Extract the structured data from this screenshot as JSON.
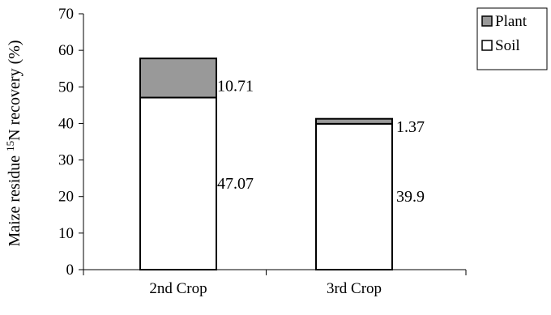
{
  "chart_data": {
    "type": "bar",
    "stacked": true,
    "categories": [
      "2nd Crop",
      "3rd Crop"
    ],
    "series": [
      {
        "name": "Soil",
        "values": [
          47.07,
          39.9
        ],
        "color": "#ffffff",
        "labels": [
          "47.07",
          "39.9"
        ]
      },
      {
        "name": "Plant",
        "values": [
          10.71,
          1.37
        ],
        "color": "#999999",
        "labels": [
          "10.71",
          "1.37"
        ]
      }
    ],
    "ylabel_prefix": "Maize residue ",
    "ylabel_sup": "15",
    "ylabel_suffix": "N recovery (%)",
    "ylim": [
      0,
      70
    ],
    "yticks": [
      "0",
      "10",
      "20",
      "30",
      "40",
      "50",
      "60",
      "70"
    ],
    "grid": false,
    "legend": {
      "placement": "top-right",
      "entries": [
        "Plant",
        "Soil"
      ]
    }
  }
}
